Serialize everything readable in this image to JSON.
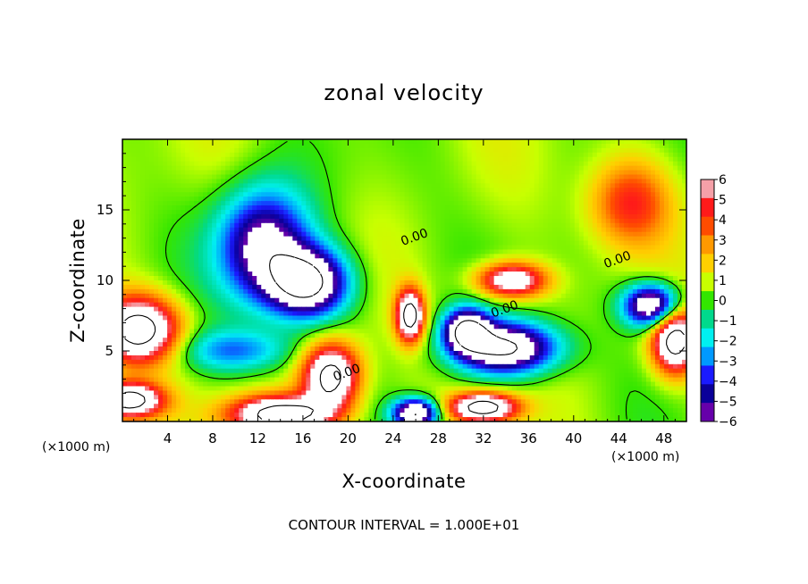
{
  "chart_data": {
    "type": "heatmap",
    "title": "zonal velocity",
    "xlabel": "X-coordinate",
    "ylabel": "Z-coordinate",
    "x_unit_label_left": "(×1000 m)",
    "x_unit_label_right": "(×1000 m)",
    "xlim": [
      0,
      50
    ],
    "ylim": [
      0,
      20
    ],
    "x_ticks": [
      4,
      8,
      12,
      16,
      20,
      24,
      28,
      32,
      36,
      40,
      44,
      48
    ],
    "y_ticks": [
      5,
      10,
      15
    ],
    "footer": "CONTOUR INTERVAL = 1.000E+01",
    "colorbar": {
      "range": [
        -6,
        6
      ],
      "ticks": [
        6,
        5,
        4,
        3,
        2,
        1,
        0,
        -1,
        -2,
        -3,
        -4,
        -5,
        -6
      ],
      "tick_labels": [
        "6",
        "5",
        "4",
        "3",
        "2",
        "1",
        "0",
        "−1",
        "−2",
        "−3",
        "−4",
        "−5",
        "−6"
      ],
      "colors": [
        "#f5a0a8",
        "#ff1a1a",
        "#ff4c00",
        "#ff9900",
        "#ffd000",
        "#c8ff00",
        "#33e600",
        "#00d98c",
        "#00f0f0",
        "#0099ff",
        "#1a1aff",
        "#0a0099",
        "#6600aa"
      ]
    },
    "contour_labels": [
      {
        "text": "0.00",
        "x": 20,
        "y": 3.2
      },
      {
        "text": "0.00",
        "x": 26,
        "y": 12.8
      },
      {
        "text": "0.00",
        "x": 34,
        "y": 7.7
      },
      {
        "text": "0.00",
        "x": 44,
        "y": 11.2
      }
    ],
    "features": [
      {
        "kind": "blob",
        "x": 16.5,
        "y": 9.8,
        "rx": 3.5,
        "ry": 2.4,
        "sign": -1
      },
      {
        "kind": "blob",
        "x": 12.5,
        "y": 12.5,
        "rx": 4,
        "ry": 4,
        "sign": -0.8
      },
      {
        "kind": "blob",
        "x": 34,
        "y": 5.2,
        "rx": 4.5,
        "ry": 1.8,
        "sign": -1
      },
      {
        "kind": "blob",
        "x": 30.5,
        "y": 6.5,
        "rx": 2.0,
        "ry": 1.5,
        "sign": -0.9
      },
      {
        "kind": "blob",
        "x": 1.5,
        "y": 6.5,
        "rx": 3.5,
        "ry": 2.3,
        "sign": 1
      },
      {
        "kind": "blob",
        "x": 18.5,
        "y": 3.2,
        "rx": 2.5,
        "ry": 2.3,
        "sign": 1
      },
      {
        "kind": "blob",
        "x": 25.5,
        "y": 7.5,
        "rx": 1.2,
        "ry": 1.8,
        "sign": 1
      },
      {
        "kind": "blob",
        "x": 34.5,
        "y": 10.0,
        "rx": 3.0,
        "ry": 1.2,
        "sign": 0.8
      },
      {
        "kind": "blob",
        "x": 47,
        "y": 8.2,
        "rx": 2.5,
        "ry": 1.5,
        "sign": -1
      },
      {
        "kind": "blob",
        "x": 49,
        "y": 5.8,
        "rx": 2.0,
        "ry": 2.3,
        "sign": 1
      },
      {
        "kind": "blob",
        "x": 0.5,
        "y": 1.5,
        "rx": 3.0,
        "ry": 1.2,
        "sign": 1
      },
      {
        "kind": "blob",
        "x": 14,
        "y": 0.5,
        "rx": 4.5,
        "ry": 1.3,
        "sign": 1
      },
      {
        "kind": "blob",
        "x": 26,
        "y": 0.6,
        "rx": 2.0,
        "ry": 1.0,
        "sign": -1
      },
      {
        "kind": "blob",
        "x": 32,
        "y": 1.0,
        "rx": 3.0,
        "ry": 1.0,
        "sign": 1
      },
      {
        "kind": "blob",
        "x": 45,
        "y": 15.5,
        "rx": 3.5,
        "ry": 3.0,
        "sign": 0.45
      },
      {
        "kind": "blob",
        "x": 10,
        "y": 5.0,
        "rx": 5.0,
        "ry": 1.5,
        "sign": -0.4
      }
    ]
  }
}
